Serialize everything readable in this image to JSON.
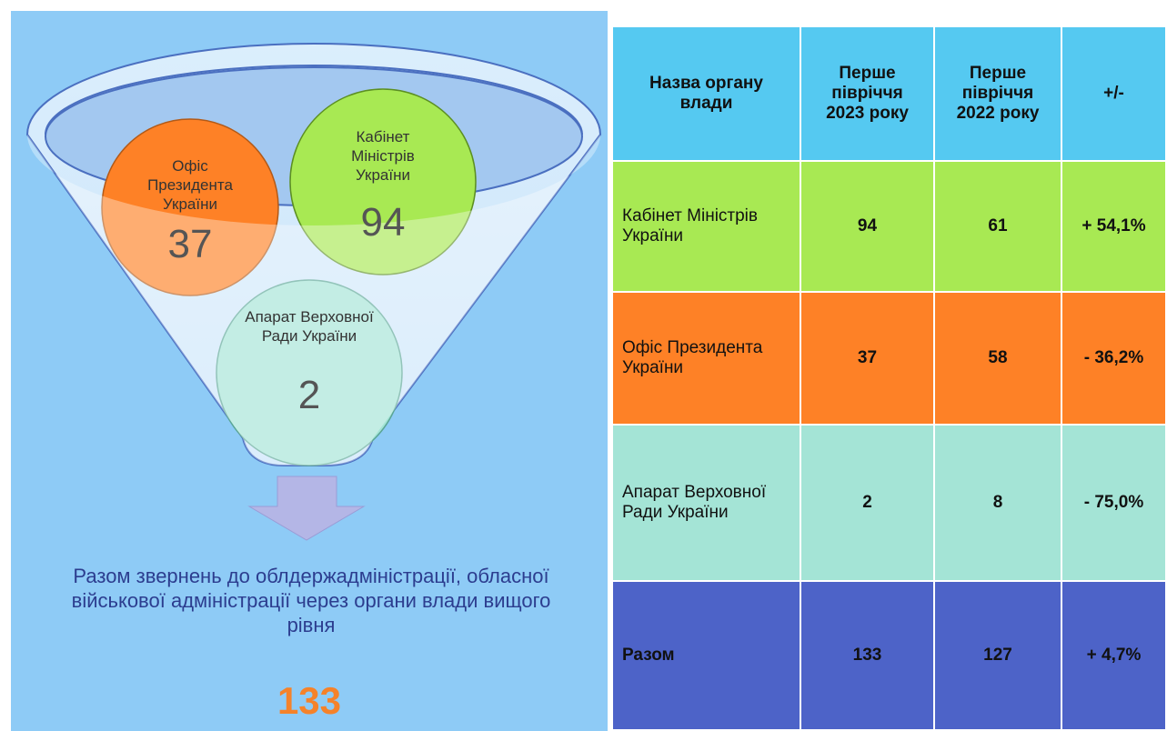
{
  "funnel": {
    "items": [
      {
        "label": "Офіс Президента України",
        "value": "37"
      },
      {
        "label": "Кабінет Міністрів України",
        "value": "94"
      },
      {
        "label": "Апарат Верховної Ради України",
        "value": "2"
      }
    ]
  },
  "total": {
    "caption": "Разом звернень до облдержадміністрації, обласної військової адміністрації через органи влади вищого рівня",
    "value": "133"
  },
  "table": {
    "header": [
      "Назва органу влади",
      "Перше півріччя 2023 року",
      "Перше півріччя 2022 року",
      "+/-"
    ],
    "rows": [
      [
        "Кабінет Міністрів України",
        "94",
        "61",
        "+ 54,1%"
      ],
      [
        "Офіс Президента України",
        "37",
        "58",
        "- 36,2%"
      ],
      [
        "Апарат Верховної Ради України",
        "2",
        "8",
        "- 75,0%"
      ],
      [
        "Разом",
        "133",
        "127",
        "+ 4,7%"
      ]
    ]
  }
}
